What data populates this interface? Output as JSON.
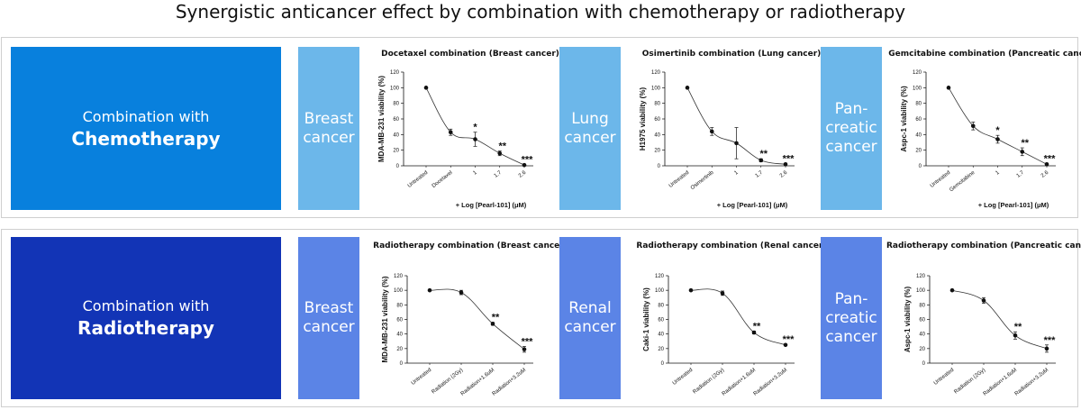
{
  "page": {
    "title": "Synergistic anticancer effect by combination with chemotherapy or radiotherapy"
  },
  "rows": [
    {
      "combo": {
        "line1": "Combination with",
        "line2": "Chemotherapy"
      },
      "cancers": [
        {
          "label_lines": [
            "Breast",
            "cancer"
          ]
        },
        {
          "label_lines": [
            "Lung",
            "cancer"
          ]
        },
        {
          "label_lines": [
            "Pan-",
            "creatic",
            "cancer"
          ]
        }
      ]
    },
    {
      "combo": {
        "line1": "Combination with",
        "line2": "Radiotherapy"
      },
      "cancers": [
        {
          "label_lines": [
            "Breast",
            "cancer"
          ]
        },
        {
          "label_lines": [
            "Renal",
            "cancer"
          ]
        },
        {
          "label_lines": [
            "Pan-",
            "creatic",
            "cancer"
          ]
        }
      ]
    }
  ],
  "chart_data": [
    {
      "type": "line",
      "title": "Docetaxel combination (Breast cancer)",
      "ylabel": "MDA-MB-231 viability (%)",
      "xlabel": "+ Log [Pearl-101] (μM)",
      "categories": [
        "Untreated",
        "Docetaxel",
        "1",
        "1.7",
        "2.6"
      ],
      "yticks": [
        0,
        20,
        40,
        60,
        80,
        100,
        120
      ],
      "ylim": [
        0,
        120
      ],
      "series": [
        {
          "values": [
            100,
            43,
            34,
            16,
            1
          ],
          "errors": [
            0,
            4,
            9,
            3,
            1
          ]
        }
      ],
      "significance": [
        "",
        "",
        "*",
        "**",
        "***"
      ]
    },
    {
      "type": "line",
      "title": "Osimertinib combination (Lung cancer)",
      "ylabel": "H1975 viability (%)",
      "xlabel": "+ Log [Pearl-101] (μM)",
      "categories": [
        "Untreated",
        "Osimertinib",
        "1",
        "1.7",
        "2.6"
      ],
      "yticks": [
        0,
        20,
        40,
        60,
        80,
        100,
        120
      ],
      "ylim": [
        0,
        120
      ],
      "series": [
        {
          "values": [
            100,
            44,
            29,
            7,
            2
          ],
          "errors": [
            0,
            5,
            20,
            2,
            1
          ]
        }
      ],
      "significance": [
        "",
        "",
        "",
        "**",
        "***"
      ]
    },
    {
      "type": "line",
      "title": "Gemcitabine combination (Pancreatic cancer)",
      "ylabel": "Aspc-1 viability (%)",
      "xlabel": "+ Log [Pearl-101] (μM)",
      "categories": [
        "Untreated",
        "Gemcitabine",
        "1",
        "1.7",
        "2.6"
      ],
      "yticks": [
        0,
        20,
        40,
        60,
        80,
        100,
        120
      ],
      "ylim": [
        0,
        120
      ],
      "series": [
        {
          "values": [
            100,
            51,
            34,
            18,
            2
          ],
          "errors": [
            0,
            5,
            5,
            5,
            1
          ]
        }
      ],
      "significance": [
        "",
        "",
        "*",
        "**",
        "***"
      ]
    },
    {
      "type": "line",
      "title": "Radiotherapy combination (Breast cancer)",
      "ylabel": "MDA-MB-231 viability (%)",
      "xlabel": "",
      "categories": [
        "Untreated",
        "Radiation (2Gy)",
        "Radiation+1.6uM",
        "Radiation+3.2uM"
      ],
      "yticks": [
        0,
        20,
        40,
        60,
        80,
        100,
        120
      ],
      "ylim": [
        0,
        120
      ],
      "series": [
        {
          "values": [
            100,
            97,
            54,
            19
          ],
          "errors": [
            0,
            3,
            2,
            4
          ]
        }
      ],
      "significance": [
        "",
        "",
        "**",
        "***"
      ]
    },
    {
      "type": "line",
      "title": "Radiotherapy combination (Renal cancer)",
      "ylabel": "Caki-1 viability (%)",
      "xlabel": "",
      "categories": [
        "Untreated",
        "Radiation (2Gy)",
        "Radiation+1.6uM",
        "Radiation+3.2uM"
      ],
      "yticks": [
        0,
        20,
        40,
        60,
        80,
        100,
        120
      ],
      "ylim": [
        0,
        120
      ],
      "series": [
        {
          "values": [
            100,
            96,
            42,
            25
          ],
          "errors": [
            0,
            3,
            2,
            1
          ]
        }
      ],
      "significance": [
        "",
        "",
        "**",
        "***"
      ]
    },
    {
      "type": "line",
      "title": "Radiotherapy combination (Pancreatic cancer)",
      "ylabel": "Aspc-1 viability (%)",
      "xlabel": "",
      "categories": [
        "Untreated",
        "Radiation (2Gy)",
        "Radiation+1.6uM",
        "Radiation+3.2uM"
      ],
      "yticks": [
        0,
        20,
        40,
        60,
        80,
        100,
        120
      ],
      "ylim": [
        0,
        120
      ],
      "series": [
        {
          "values": [
            100,
            86,
            38,
            20
          ],
          "errors": [
            0,
            4,
            5,
            5
          ]
        }
      ],
      "significance": [
        "",
        "",
        "**",
        "***"
      ]
    }
  ]
}
